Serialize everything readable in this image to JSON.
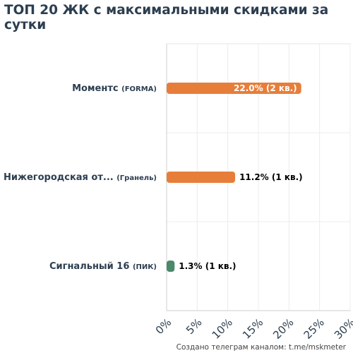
{
  "title": "ТОП 20 ЖК с максимальными скидками за сутки",
  "footer": "Создано телеграм каналом: t.me/mskmeter",
  "chart_data": {
    "type": "bar",
    "orientation": "horizontal",
    "title": "ТОП 20 ЖК с максимальными скидками за сутки",
    "xlim": [
      0,
      30
    ],
    "xticks": [
      0,
      5,
      10,
      15,
      20,
      25,
      30
    ],
    "xtick_labels": [
      "0%",
      "5%",
      "10%",
      "15%",
      "20%",
      "25%",
      "30%"
    ],
    "grid": true,
    "categories": [
      {
        "name": "Моментс",
        "developer": "(FORMA)",
        "value": 22.0,
        "label": "22.0% (2 кв.)",
        "color": "#e67e3a",
        "label_inside": true
      },
      {
        "name": "Нижегородская от...",
        "developer": "(Гранель)",
        "value": 11.2,
        "label": "11.2% (1 кв.)",
        "color": "#e67e3a",
        "label_inside": false
      },
      {
        "name": "Сигнальный 16",
        "developer": "(ПИК)",
        "value": 1.3,
        "label": "1.3% (1 кв.)",
        "color": "#4a8a6a",
        "label_inside": false
      }
    ]
  }
}
